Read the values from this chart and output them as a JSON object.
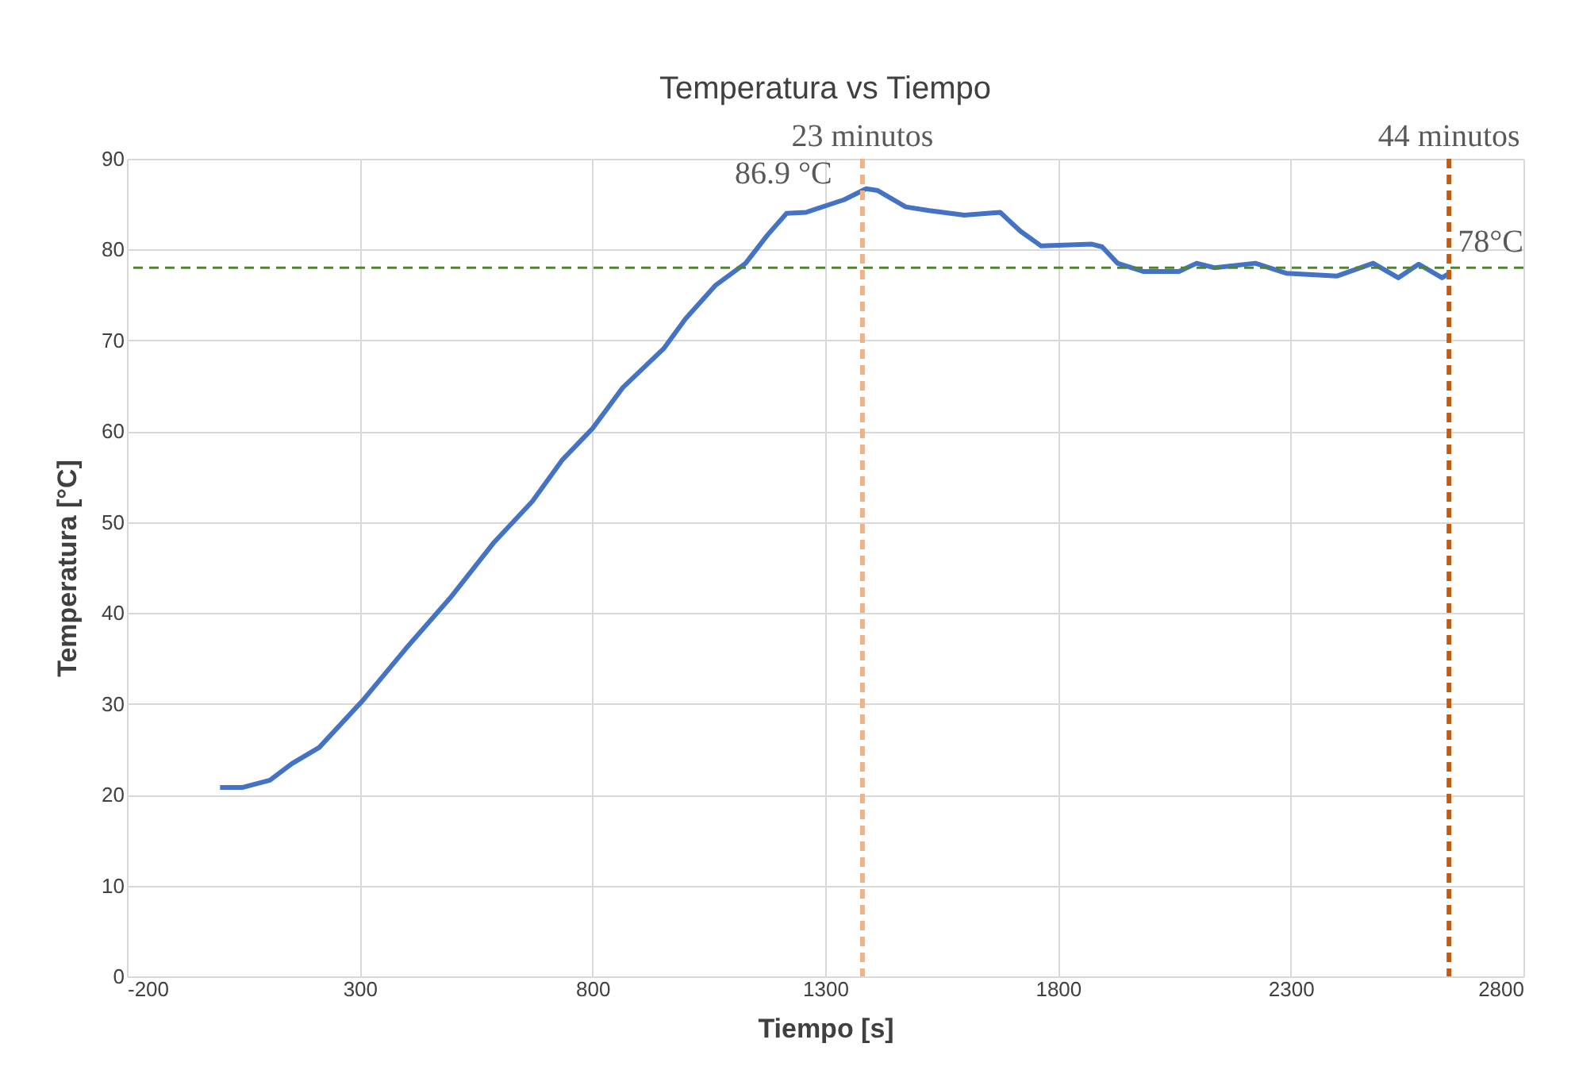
{
  "chart_data": {
    "type": "line",
    "title": "Temperatura vs Tiempo",
    "xlabel": "Tiempo [s]",
    "ylabel": "Temperatura [°C]",
    "xlim": [
      -200,
      2800
    ],
    "xticks": [
      -200,
      300,
      800,
      1300,
      1800,
      2300,
      2800
    ],
    "ylim": [
      0,
      90
    ],
    "yticks": [
      0,
      10,
      20,
      30,
      40,
      50,
      60,
      70,
      80,
      90
    ],
    "grid": true,
    "series": [
      {
        "color": "#4472c4",
        "x": [
          0,
          49,
          107,
          154,
          213,
          307,
          401,
          495,
          589,
          671,
          736,
          800,
          865,
          953,
          1000,
          1065,
          1129,
          1176,
          1217,
          1259,
          1341,
          1388,
          1413,
          1473,
          1523,
          1599,
          1676,
          1720,
          1764,
          1873,
          1895,
          1928,
          1983,
          2060,
          2098,
          2137,
          2224,
          2290,
          2400,
          2477,
          2531,
          2575,
          2625,
          2641
        ],
        "values": [
          20.8,
          20.8,
          21.6,
          23.4,
          25.2,
          30.4,
          36.2,
          41.7,
          47.8,
          52.3,
          56.9,
          60.3,
          64.8,
          69.1,
          72.4,
          76.1,
          78.5,
          81.6,
          84.0,
          84.1,
          85.5,
          86.7,
          86.5,
          84.7,
          84.3,
          83.8,
          84.1,
          82.0,
          80.4,
          80.6,
          80.3,
          78.5,
          77.6,
          77.6,
          78.5,
          78.0,
          78.5,
          77.4,
          77.1,
          78.5,
          76.9,
          78.4,
          76.9,
          77.4
        ]
      }
    ],
    "ref_lines": [
      {
        "axis": "y",
        "value": 78,
        "label": "78°C",
        "color": "#548235",
        "line_style": "dashed"
      },
      {
        "axis": "x",
        "value": 1380,
        "label": "23 minutos",
        "color": "#f4b183",
        "line_style": "dashed"
      },
      {
        "axis": "x",
        "value": 2640,
        "label": "44 minutos",
        "color": "#c55a11",
        "line_style": "dashed"
      }
    ],
    "annotations": [
      {
        "text": "86.9 °C",
        "x": 1400,
        "y": 86.9
      }
    ]
  }
}
